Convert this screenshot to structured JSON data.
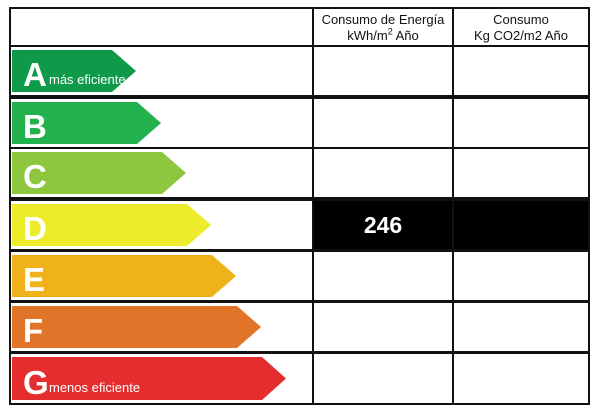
{
  "header": {
    "col1_line1": "Consumo de Energía",
    "col1_line2_prefix": "kWh/m",
    "col1_line2_sup": "2",
    "col1_line2_suffix": " Año",
    "col2_line1": "Consumo",
    "col2_line2": "Kg CO2/m2 Año"
  },
  "rating_scale": [
    {
      "letter": "A",
      "label": "más eficiente",
      "color": "#0f9a4a"
    },
    {
      "letter": "B",
      "label": "",
      "color": "#22b14c"
    },
    {
      "letter": "C",
      "label": "",
      "color": "#8dc63f"
    },
    {
      "letter": "D",
      "label": "",
      "color": "#ecec2a"
    },
    {
      "letter": "E",
      "label": "",
      "color": "#f0b21a"
    },
    {
      "letter": "F",
      "label": "",
      "color": "#e2742a"
    },
    {
      "letter": "G",
      "label": "menos eficiente",
      "color": "#e52d2d"
    }
  ],
  "result": {
    "rating": "D",
    "energy_value": "246",
    "co2_value": ""
  }
}
